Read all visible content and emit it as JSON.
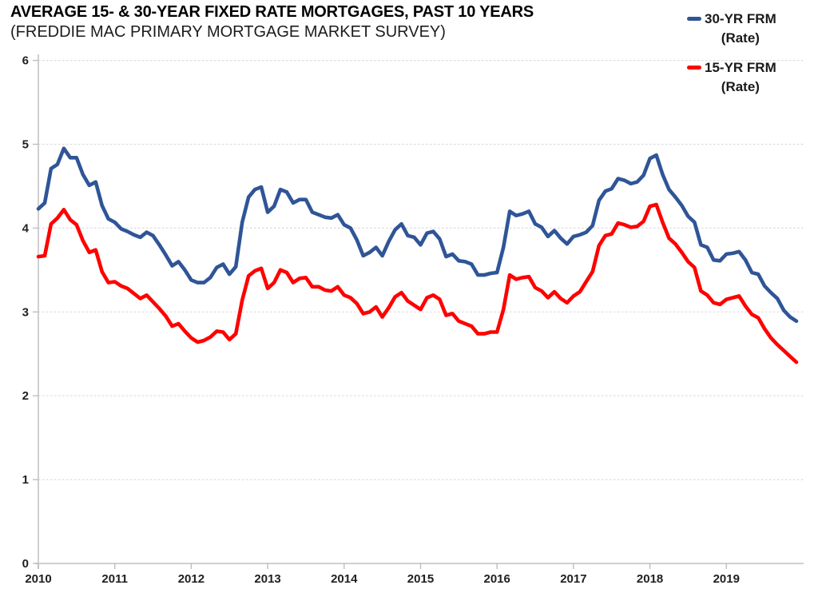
{
  "header": {
    "title": "AVERAGE 15- & 30-YEAR FIXED RATE MORTGAGES, PAST 10 YEARS",
    "subtitle": "(FREDDIE MAC PRIMARY MORTGAGE MARKET SURVEY)"
  },
  "legend": {
    "position": "top-right",
    "entries": [
      {
        "label_line1": "30-YR FRM",
        "label_line2": "(Rate)",
        "color": "#2F5597"
      },
      {
        "label_line1": "15-YR FRM",
        "label_line2": "(Rate)",
        "color": "#FF0000"
      }
    ]
  },
  "colors": {
    "grid": "#dbdbe0",
    "axis": "#cfcfd4",
    "tick": "#b9b9c0",
    "tick_label": "#1f1f1f"
  },
  "chart_data": {
    "type": "line",
    "title": "AVERAGE 15- & 30-YEAR FIXED RATE MORTGAGES, PAST 10 YEARS",
    "subtitle": "(FREDDIE MAC PRIMARY MORTGAGE MARKET SURVEY)",
    "frequency": "monthly",
    "x_start": "2010-10",
    "x_tick_labels": [
      "2010",
      "2011",
      "2012",
      "2013",
      "2014",
      "2015",
      "2016",
      "2017",
      "2018",
      "2019"
    ],
    "x_tick_indices": [
      0,
      12,
      24,
      36,
      48,
      60,
      72,
      84,
      96,
      108
    ],
    "y_ticks": [
      0,
      1,
      2,
      3,
      4,
      5,
      6
    ],
    "ylim": [
      0,
      6
    ],
    "grid": "horizontal-dashed",
    "legend_position": "top-right",
    "series": [
      {
        "name": "30-YR FRM (Rate)",
        "color": "#2F5597",
        "values": [
          4.23,
          4.3,
          4.71,
          4.76,
          4.95,
          4.84,
          4.84,
          4.64,
          4.51,
          4.55,
          4.27,
          4.11,
          4.07,
          3.99,
          3.96,
          3.92,
          3.89,
          3.95,
          3.91,
          3.8,
          3.68,
          3.55,
          3.6,
          3.5,
          3.38,
          3.35,
          3.35,
          3.41,
          3.53,
          3.57,
          3.45,
          3.54,
          4.07,
          4.37,
          4.46,
          4.49,
          4.19,
          4.26,
          4.46,
          4.43,
          4.3,
          4.34,
          4.34,
          4.19,
          4.16,
          4.13,
          4.12,
          4.16,
          4.04,
          4.0,
          3.86,
          3.67,
          3.71,
          3.77,
          3.67,
          3.84,
          3.98,
          4.05,
          3.91,
          3.89,
          3.8,
          3.94,
          3.96,
          3.87,
          3.66,
          3.69,
          3.61,
          3.6,
          3.57,
          3.44,
          3.44,
          3.46,
          3.47,
          3.77,
          4.2,
          4.15,
          4.17,
          4.2,
          4.05,
          4.01,
          3.9,
          3.97,
          3.88,
          3.81,
          3.9,
          3.92,
          3.95,
          4.03,
          4.33,
          4.44,
          4.47,
          4.59,
          4.57,
          4.53,
          4.55,
          4.63,
          4.83,
          4.87,
          4.64,
          4.46,
          4.37,
          4.27,
          4.14,
          4.07,
          3.8,
          3.77,
          3.62,
          3.61,
          3.69,
          3.7,
          3.72,
          3.62,
          3.47,
          3.45,
          3.31,
          3.23,
          3.16,
          3.02,
          2.94,
          2.89
        ]
      },
      {
        "name": "15-YR FRM (Rate)",
        "color": "#FF0000",
        "values": [
          3.66,
          3.67,
          4.05,
          4.12,
          4.22,
          4.1,
          4.04,
          3.85,
          3.71,
          3.74,
          3.48,
          3.35,
          3.36,
          3.31,
          3.28,
          3.22,
          3.16,
          3.2,
          3.12,
          3.04,
          2.95,
          2.83,
          2.86,
          2.77,
          2.69,
          2.64,
          2.66,
          2.7,
          2.77,
          2.76,
          2.67,
          2.74,
          3.14,
          3.43,
          3.49,
          3.52,
          3.28,
          3.35,
          3.5,
          3.47,
          3.35,
          3.4,
          3.41,
          3.3,
          3.3,
          3.26,
          3.25,
          3.3,
          3.2,
          3.17,
          3.1,
          2.98,
          3.0,
          3.06,
          2.94,
          3.05,
          3.18,
          3.23,
          3.13,
          3.08,
          3.03,
          3.17,
          3.2,
          3.15,
          2.96,
          2.98,
          2.89,
          2.86,
          2.83,
          2.74,
          2.74,
          2.76,
          2.76,
          3.03,
          3.44,
          3.39,
          3.41,
          3.42,
          3.29,
          3.25,
          3.17,
          3.24,
          3.16,
          3.11,
          3.19,
          3.24,
          3.36,
          3.48,
          3.79,
          3.91,
          3.93,
          4.06,
          4.04,
          4.01,
          4.02,
          4.08,
          4.26,
          4.28,
          4.07,
          3.88,
          3.81,
          3.71,
          3.6,
          3.53,
          3.25,
          3.2,
          3.11,
          3.09,
          3.15,
          3.17,
          3.19,
          3.07,
          2.97,
          2.93,
          2.8,
          2.69,
          2.61,
          2.54,
          2.47,
          2.4
        ]
      }
    ]
  }
}
